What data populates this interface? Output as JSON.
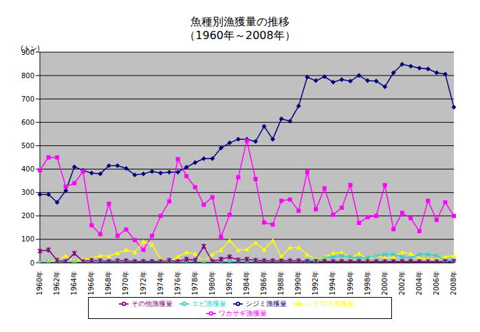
{
  "chart_data": {
    "type": "line",
    "title": "魚種別漁獲量の推移",
    "subtitle": "（1960年～2008年）",
    "y_label": "(トン)",
    "categories": [
      "1960年",
      null,
      "1962年",
      null,
      "1964年",
      null,
      "1966年",
      null,
      "1968年",
      null,
      "1970年",
      null,
      "1972年",
      null,
      "1974年",
      null,
      "1976年",
      null,
      "1978年",
      null,
      "1980年",
      null,
      "1982年",
      null,
      "1984年",
      null,
      "1986年",
      null,
      "1988年",
      null,
      "1990年",
      null,
      "1992年",
      null,
      "1994年",
      null,
      "1996年",
      null,
      "1998年",
      null,
      "2000年",
      null,
      "2002年",
      null,
      "2004年",
      null,
      "2006年",
      null,
      "2008年"
    ],
    "series": [
      {
        "name": "シジミ漁獲量",
        "color": "#000080",
        "marker": "diamond",
        "values": [
          292,
          292,
          258,
          308,
          410,
          395,
          383,
          380,
          415,
          415,
          403,
          375,
          380,
          390,
          383,
          387,
          387,
          408,
          428,
          445,
          445,
          490,
          512,
          528,
          528,
          518,
          583,
          528,
          615,
          605,
          670,
          793,
          778,
          795,
          772,
          783,
          776,
          800,
          778,
          776,
          752,
          812,
          848,
          840,
          832,
          828,
          812,
          806,
          665
        ]
      },
      {
        "name": "ワカサギ漁獲量",
        "color": "#ff00ff",
        "marker": "square",
        "values": [
          395,
          450,
          450,
          325,
          340,
          390,
          160,
          122,
          252,
          115,
          142,
          97,
          55,
          115,
          200,
          262,
          443,
          370,
          323,
          248,
          280,
          110,
          205,
          365,
          522,
          358,
          172,
          163,
          265,
          270,
          222,
          388,
          228,
          318,
          205,
          235,
          332,
          170,
          195,
          200,
          332,
          143,
          213,
          190,
          135,
          265,
          183,
          258,
          200
        ]
      },
      {
        "name": "シラウオ漁獲量",
        "color": "#ffff00",
        "marker": "triangle",
        "values": [
          0,
          5,
          10,
          30,
          5,
          15,
          20,
          30,
          28,
          42,
          55,
          45,
          90,
          78,
          15,
          5,
          25,
          45,
          38,
          5,
          35,
          55,
          95,
          55,
          57,
          85,
          55,
          95,
          25,
          65,
          65,
          35,
          15,
          25,
          40,
          45,
          20,
          40,
          15,
          30,
          20,
          25,
          45,
          38,
          20,
          15,
          15,
          25,
          30
        ]
      },
      {
        "name": "エビ漁獲量",
        "color": "#33cccc",
        "marker": "x",
        "values": [
          0,
          2,
          2,
          3,
          2,
          3,
          3,
          2,
          3,
          3,
          4,
          3,
          3,
          4,
          3,
          4,
          3,
          4,
          4,
          3,
          4,
          5,
          4,
          5,
          5,
          5,
          5,
          5,
          5,
          5,
          6,
          8,
          10,
          20,
          25,
          30,
          25,
          20,
          22,
          30,
          35,
          35,
          25,
          20,
          35,
          35,
          30,
          10,
          10
        ]
      },
      {
        "name": "その他漁獲量",
        "color": "#800080",
        "marker": "star",
        "values": [
          50,
          55,
          10,
          5,
          40,
          5,
          10,
          8,
          5,
          8,
          8,
          5,
          5,
          5,
          5,
          10,
          5,
          15,
          10,
          70,
          5,
          15,
          25,
          12,
          15,
          10,
          8,
          8,
          8,
          8,
          8,
          5,
          5,
          5,
          5,
          5,
          5,
          5,
          5,
          5,
          5,
          5,
          5,
          5,
          5,
          5,
          5,
          5,
          5
        ]
      }
    ],
    "ylim": [
      0,
      900
    ],
    "yticks": [
      0,
      100,
      200,
      300,
      400,
      500,
      600,
      700,
      800,
      900
    ],
    "grid": true,
    "legend": "bottom"
  }
}
